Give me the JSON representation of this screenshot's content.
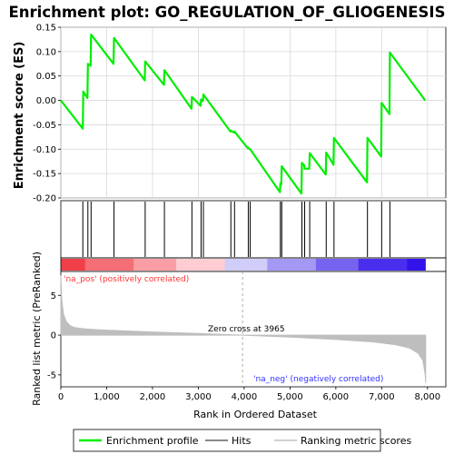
{
  "title": "Enrichment plot: GO_REGULATION_OF_GLIOGENESIS",
  "colors": {
    "profile": "#00ee00",
    "hits": "#000000",
    "metric": "#bebebe",
    "pos_label": "#ff3333",
    "neg_label": "#3333ff"
  },
  "legend": {
    "profile": "Enrichment profile",
    "hits": "Hits",
    "metric": "Ranking metric scores"
  },
  "annotations": {
    "pos": "'na_pos' (positively correlated)",
    "neg": "'na_neg' (negatively correlated)",
    "zero_cross": "Zero cross at 3965"
  },
  "chart_data": [
    {
      "type": "line",
      "name": "enrichment-profile",
      "title": "Enrichment plot: GO_REGULATION_OF_GLIOGENESIS",
      "ylabel": "Enrichment score (ES)",
      "xlim": [
        0,
        8400
      ],
      "ylim": [
        -0.2,
        0.15
      ],
      "yticks": [
        -0.2,
        -0.15,
        -0.1,
        -0.05,
        0.0,
        0.05,
        0.1,
        0.15
      ],
      "ytick_labels": [
        "-0.20",
        "-0.15",
        "-0.10",
        "-0.05",
        "0.00",
        "0.05",
        "0.10",
        "0.15"
      ],
      "grid": true,
      "x": [
        0,
        480,
        490,
        580,
        590,
        650,
        660,
        1150,
        1160,
        1830,
        1840,
        2250,
        2260,
        2850,
        2860,
        3050,
        3060,
        3100,
        3110,
        3700,
        3710,
        3780,
        3790,
        4080,
        4090,
        4120,
        4130,
        4780,
        4790,
        4810,
        4820,
        5250,
        5260,
        5310,
        5320,
        5420,
        5430,
        5780,
        5790,
        5950,
        5960,
        6680,
        6690,
        6990,
        7000,
        7170,
        7180,
        7950
      ],
      "y": [
        0.0,
        -0.058,
        0.018,
        0.005,
        0.075,
        0.071,
        0.135,
        0.075,
        0.128,
        0.041,
        0.08,
        0.032,
        0.062,
        -0.017,
        0.007,
        -0.011,
        0.002,
        -0.001,
        0.012,
        -0.064,
        -0.062,
        -0.066,
        -0.064,
        -0.098,
        -0.097,
        -0.1,
        -0.1,
        -0.188,
        -0.17,
        -0.172,
        -0.135,
        -0.191,
        -0.128,
        -0.133,
        -0.14,
        -0.14,
        -0.108,
        -0.152,
        -0.107,
        -0.132,
        -0.077,
        -0.168,
        -0.077,
        -0.115,
        -0.005,
        -0.028,
        0.098,
        0.0
      ]
    },
    {
      "type": "scatter",
      "name": "hits",
      "x": [
        480,
        590,
        660,
        1160,
        1840,
        2260,
        2860,
        3060,
        3110,
        3710,
        3790,
        4090,
        4130,
        4790,
        4820,
        5260,
        5320,
        5430,
        5790,
        5960,
        6690,
        7000,
        7180
      ]
    },
    {
      "type": "area",
      "name": "ranking-metric",
      "xlabel": "Rank in Ordered Dataset",
      "ylabel": "Ranked list metric (PreRanked)",
      "xlim": [
        0,
        8400
      ],
      "ylim": [
        -6.5,
        8.0
      ],
      "yticks": [
        -5,
        0,
        5
      ],
      "xticks": [
        0,
        1000,
        2000,
        3000,
        4000,
        5000,
        6000,
        7000,
        8000
      ],
      "xtick_labels": [
        "0",
        "1,000",
        "2,000",
        "3,000",
        "4,000",
        "5,000",
        "6,000",
        "7,000",
        "8,000"
      ],
      "zero_cross": 3965,
      "x": [
        0,
        20,
        60,
        120,
        200,
        300,
        500,
        800,
        1200,
        2000,
        3000,
        3965,
        5000,
        6000,
        6800,
        7300,
        7600,
        7800,
        7900,
        7950,
        7960
      ],
      "y": [
        7.5,
        4.5,
        2.6,
        1.7,
        1.2,
        0.95,
        0.8,
        0.68,
        0.58,
        0.4,
        0.2,
        0.0,
        -0.25,
        -0.55,
        -0.85,
        -1.2,
        -1.6,
        -2.3,
        -3.2,
        -5.0,
        -6.0
      ]
    }
  ]
}
